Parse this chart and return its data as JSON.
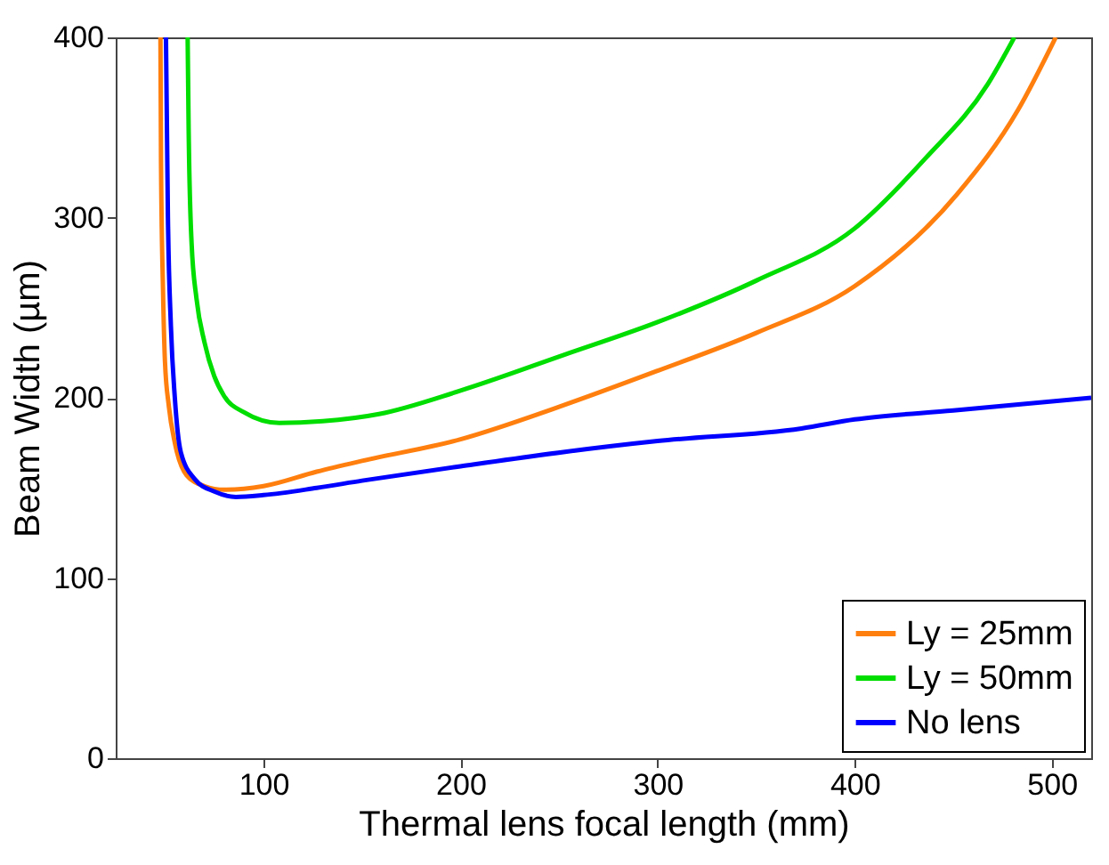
{
  "chart_data": {
    "type": "line",
    "xlabel": "Thermal lens focal length (mm)",
    "ylabel": "Beam Width (µm)",
    "xlim": [
      25,
      520
    ],
    "xticks": [
      100,
      200,
      300,
      400,
      500
    ],
    "ylim": [
      0,
      400
    ],
    "yticks": [
      0,
      100,
      200,
      300,
      400
    ],
    "grid": false,
    "legend": "bottom right",
    "marker": "none",
    "line_style": "solid",
    "series": [
      {
        "name": "Ly = 25mm",
        "color": "#ff7f0e",
        "x": [
          47.7,
          48,
          49,
          50,
          52,
          55,
          61,
          70,
          80,
          100,
          127,
          150,
          200,
          250,
          300,
          350,
          400,
          452,
          483,
          502
        ],
        "values": [
          400,
          330,
          260,
          220,
          195,
          175,
          157,
          151,
          149,
          151,
          159,
          165,
          177,
          195,
          215,
          236,
          262,
          313,
          360,
          400
        ]
      },
      {
        "name": "Ly = 50mm",
        "color": "#00dd00",
        "x": [
          61.5,
          62,
          63.5,
          66,
          70,
          75,
          80,
          90,
          108,
          130,
          158.6,
          200,
          253,
          300,
          350,
          400,
          436,
          467.5,
          481
        ],
        "values": [
          400,
          350,
          286,
          255,
          231,
          212,
          201,
          192,
          186,
          187,
          191,
          204,
          224,
          242,
          265,
          294,
          333,
          374,
          400
        ]
      },
      {
        "name": "No lens",
        "color": "#0000ff",
        "x": [
          50.5,
          51.5,
          53,
          55,
          58,
          65,
          75,
          86,
          100,
          127,
          150,
          200,
          253,
          300,
          373,
          400,
          450,
          520
        ],
        "values": [
          400,
          300,
          240,
          200,
          170,
          155,
          148,
          145,
          146,
          150,
          154,
          162,
          170,
          176,
          183,
          188,
          193,
          200
        ]
      }
    ]
  }
}
